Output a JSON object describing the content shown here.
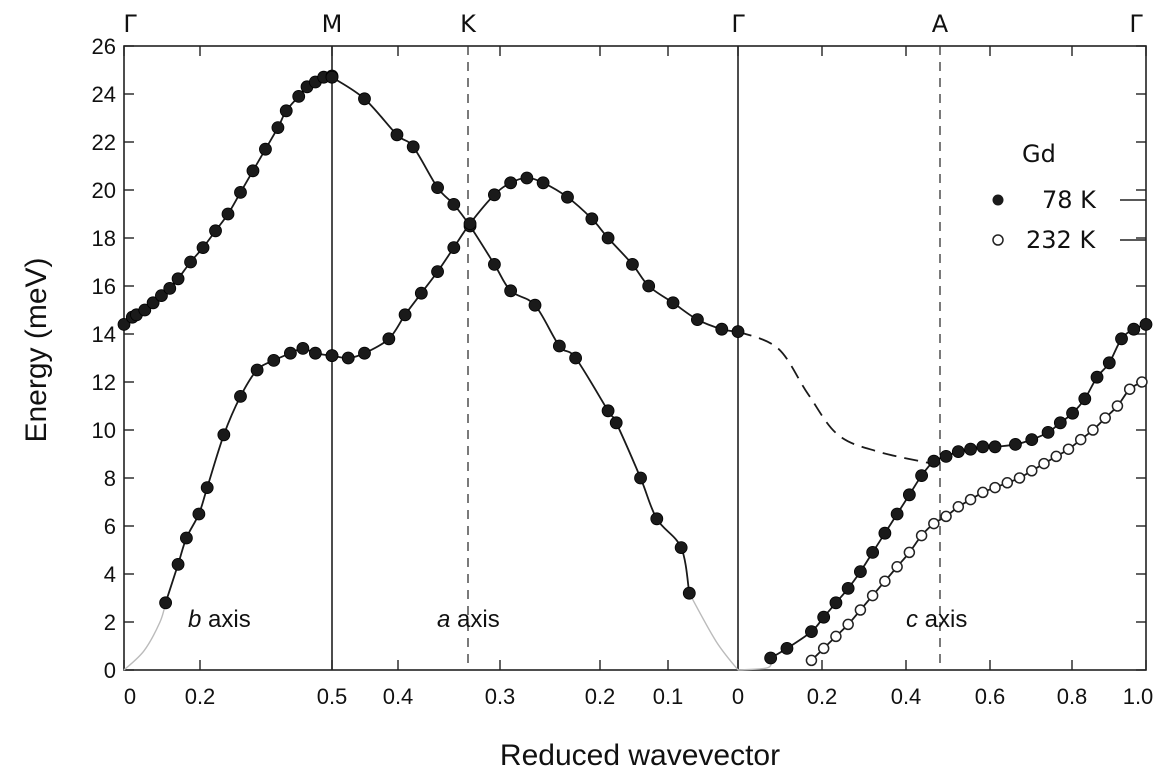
{
  "chart_data": {
    "type": "scatter",
    "title": "",
    "ylabel": "Energy (meV)",
    "xlabel": "Reduced wavevector",
    "ylim": [
      0,
      26
    ],
    "yticks": [
      "0",
      "2",
      "4",
      "6",
      "8",
      "10",
      "12",
      "14",
      "16",
      "18",
      "20",
      "22",
      "24",
      "26"
    ],
    "xticks": [
      "0",
      "0.2",
      "0.5",
      "0.4",
      "0.3",
      "0.2",
      "0.1",
      "0",
      "0.2",
      "0.4",
      "0.6",
      "0.8",
      "1.0"
    ],
    "symmetry_points": [
      "Γ",
      "M",
      "K",
      "Γ",
      "A",
      "Γ"
    ],
    "annotations": [
      {
        "italic": "b",
        "text": " axis"
      },
      {
        "italic": "a",
        "text": " axis"
      },
      {
        "italic": "c",
        "text": " axis"
      }
    ],
    "legend": {
      "title": "Gd",
      "position": "right",
      "entries": [
        {
          "label": "78 K",
          "marker": "filled-circle"
        },
        {
          "label": "232 K",
          "marker": "open-circle"
        }
      ]
    },
    "panels": [
      {
        "name": "b axis (Γ–M)",
        "x_range": [
          0,
          0.5
        ],
        "series": [
          {
            "name": "78 K",
            "branch": "upper",
            "x": [
              0.0,
              0.02,
              0.03,
              0.05,
              0.07,
              0.09,
              0.11,
              0.13,
              0.16,
              0.19,
              0.22,
              0.25,
              0.28,
              0.31,
              0.34,
              0.37,
              0.39,
              0.42,
              0.44,
              0.46,
              0.48,
              0.5
            ],
            "y": [
              14.4,
              14.7,
              14.8,
              15.0,
              15.3,
              15.6,
              15.9,
              16.3,
              17.0,
              17.6,
              18.3,
              19.0,
              19.9,
              20.8,
              21.7,
              22.6,
              23.3,
              23.9,
              24.3,
              24.5,
              24.7,
              24.75
            ]
          },
          {
            "name": "78 K",
            "branch": "lower",
            "x": [
              0.1,
              0.13,
              0.15,
              0.18,
              0.2,
              0.24,
              0.28,
              0.32,
              0.36,
              0.4,
              0.43,
              0.46,
              0.5
            ],
            "y": [
              2.8,
              4.4,
              5.5,
              6.5,
              7.6,
              9.8,
              11.4,
              12.5,
              12.9,
              13.2,
              13.4,
              13.2,
              13.1
            ]
          }
        ]
      },
      {
        "name": "a axis (M–K–Γ)",
        "x_range": [
          0.5,
          0
        ],
        "series": [
          {
            "name": "78 K",
            "branch": "descending",
            "x": [
              0.5,
              0.46,
              0.42,
              0.4,
              0.37,
              0.35,
              0.33,
              0.3,
              0.28,
              0.25,
              0.22,
              0.2,
              0.16,
              0.15,
              0.12,
              0.1,
              0.07,
              0.06
            ],
            "y": [
              24.7,
              23.8,
              22.3,
              21.8,
              20.1,
              19.4,
              18.5,
              16.9,
              15.8,
              15.2,
              13.5,
              13.0,
              10.8,
              10.3,
              8.0,
              6.3,
              5.1,
              3.2
            ]
          },
          {
            "name": "78 K",
            "branch": "rising",
            "x": [
              0.5,
              0.48,
              0.46,
              0.43,
              0.41,
              0.39,
              0.37,
              0.35,
              0.33,
              0.3,
              0.28,
              0.26,
              0.24,
              0.21,
              0.18,
              0.16,
              0.13,
              0.11,
              0.08,
              0.05,
              0.02,
              0.0
            ],
            "y": [
              13.1,
              13.0,
              13.2,
              13.8,
              14.8,
              15.7,
              16.6,
              17.6,
              18.6,
              19.8,
              20.3,
              20.5,
              20.3,
              19.7,
              18.8,
              18.0,
              16.9,
              16.0,
              15.3,
              14.6,
              14.2,
              14.1
            ]
          }
        ]
      },
      {
        "name": "c axis (Γ–A–Γ)",
        "x_range": [
          0,
          1.0
        ],
        "series": [
          {
            "name": "78 K",
            "x": [
              0.08,
              0.12,
              0.18,
              0.21,
              0.24,
              0.27,
              0.3,
              0.33,
              0.36,
              0.39,
              0.42,
              0.45,
              0.48,
              0.51,
              0.54,
              0.57,
              0.6,
              0.63,
              0.68,
              0.72,
              0.76,
              0.79,
              0.82,
              0.85,
              0.88,
              0.91,
              0.94,
              0.97,
              1.0
            ],
            "y": [
              0.5,
              0.9,
              1.6,
              2.2,
              2.8,
              3.4,
              4.1,
              4.9,
              5.7,
              6.5,
              7.3,
              8.1,
              8.7,
              8.9,
              9.1,
              9.2,
              9.3,
              9.3,
              9.4,
              9.6,
              9.9,
              10.3,
              10.7,
              11.3,
              12.2,
              12.8,
              13.8,
              14.2,
              14.4
            ]
          },
          {
            "name": "232 K",
            "x": [
              0.18,
              0.21,
              0.24,
              0.27,
              0.3,
              0.33,
              0.36,
              0.39,
              0.42,
              0.45,
              0.48,
              0.51,
              0.54,
              0.57,
              0.6,
              0.63,
              0.66,
              0.69,
              0.72,
              0.75,
              0.78,
              0.81,
              0.84,
              0.87,
              0.9,
              0.93,
              0.96,
              0.99
            ],
            "y": [
              0.4,
              0.9,
              1.4,
              1.9,
              2.5,
              3.1,
              3.7,
              4.3,
              4.9,
              5.6,
              6.1,
              6.4,
              6.8,
              7.1,
              7.4,
              7.6,
              7.8,
              8.0,
              8.3,
              8.6,
              8.9,
              9.2,
              9.6,
              10.0,
              10.5,
              11.0,
              11.7,
              12.0
            ]
          }
        ]
      }
    ]
  }
}
